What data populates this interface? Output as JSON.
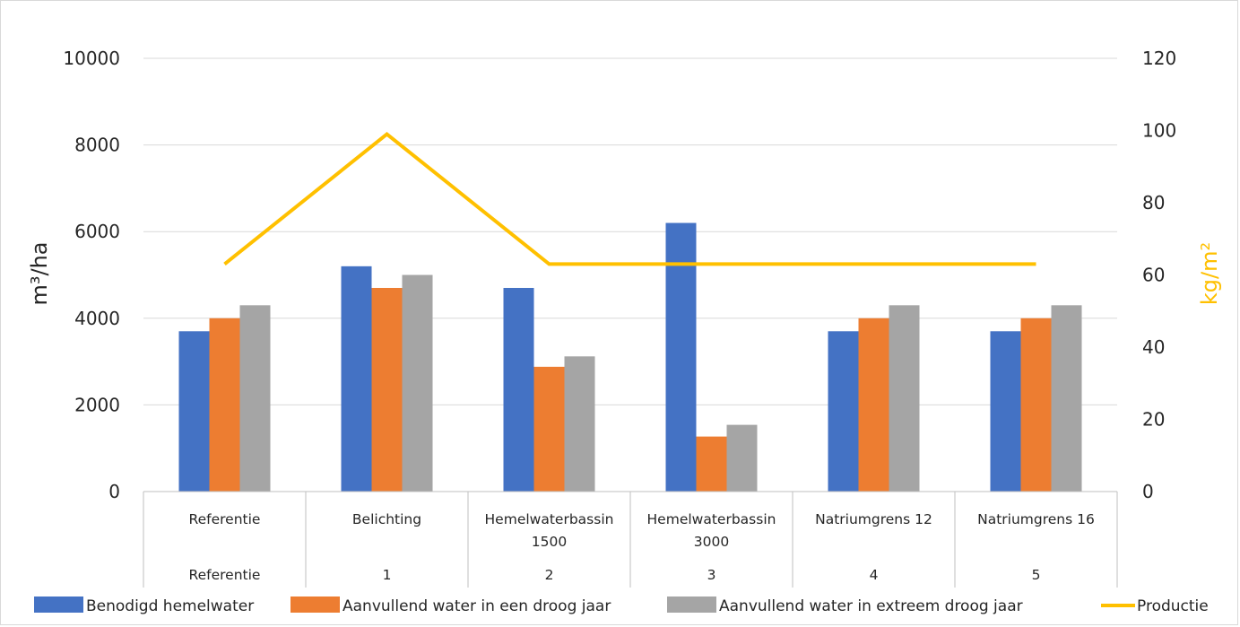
{
  "chart_data": {
    "type": "bar",
    "categories": [
      {
        "line1": "Referentie",
        "line2": "",
        "group": "Referentie"
      },
      {
        "line1": "Belichting",
        "line2": "",
        "group": "1"
      },
      {
        "line1": "Hemelwaterbassin",
        "line2": "1500",
        "group": "2"
      },
      {
        "line1": "Hemelwaterbassin",
        "line2": "3000",
        "group": "3"
      },
      {
        "line1": "Natriumgrens 12",
        "line2": "",
        "group": "4"
      },
      {
        "line1": "Natriumgrens 16",
        "line2": "",
        "group": "5"
      }
    ],
    "series": [
      {
        "name": "Benodigd hemelwater",
        "color": "#4472c4",
        "values": [
          3700,
          5200,
          4700,
          6200,
          3700,
          3700
        ]
      },
      {
        "name": "Aanvullend water in een droog jaar",
        "color": "#ed7d31",
        "values": [
          4000,
          4700,
          2880,
          1270,
          4000,
          4000
        ]
      },
      {
        "name": "Aanvullend water in extreem droog jaar",
        "color": "#a5a5a5",
        "values": [
          4300,
          5000,
          3120,
          1540,
          4300,
          4300
        ]
      }
    ],
    "line_series": {
      "name": "Productie",
      "color": "#ffc000",
      "axis": "secondary",
      "values": [
        63,
        99,
        63,
        63,
        63,
        63
      ]
    },
    "y_left": {
      "label": "m³/ha",
      "ticks": [
        "0",
        "2000",
        "4000",
        "6000",
        "8000",
        "10000"
      ],
      "min": 0,
      "max": 10000
    },
    "y_right": {
      "label": "kg/m²",
      "ticks": [
        "0",
        "20",
        "40",
        "60",
        "80",
        "100",
        "120"
      ],
      "min": 0,
      "max": 120,
      "label_color": "#ffc000"
    },
    "grid": true,
    "legend_position": "bottom"
  }
}
